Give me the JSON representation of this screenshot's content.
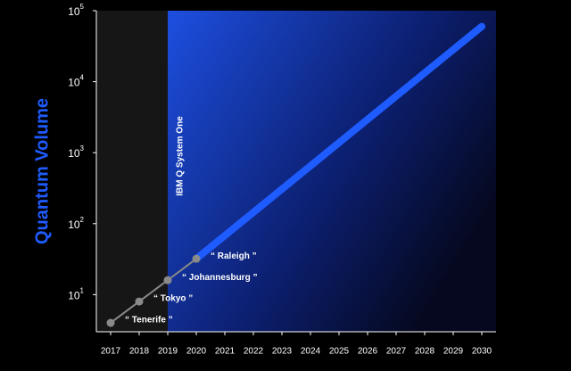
{
  "chart_data": {
    "type": "line",
    "log_y": true,
    "y_label": "Quantum Volume",
    "y_label_color": "#1f5cff",
    "xlim": [
      2016.5,
      2030.5
    ],
    "ylim": [
      3,
      100000
    ],
    "xticks": [
      2017,
      2018,
      2019,
      2020,
      2021,
      2022,
      2023,
      2024,
      2025,
      2026,
      2027,
      2028,
      2029,
      2030
    ],
    "yticks": [
      {
        "value": 10,
        "label": "10",
        "exponent": "1"
      },
      {
        "value": 100,
        "label": "10",
        "exponent": "2"
      },
      {
        "value": 1000,
        "label": "10",
        "exponent": "3"
      },
      {
        "value": 10000,
        "label": "10",
        "exponent": "4"
      },
      {
        "value": 100000,
        "label": "10",
        "exponent": "5"
      }
    ],
    "highlight_start": 2019,
    "highlight_label": "IBM Q System One",
    "x": [
      2017,
      2018,
      2019,
      2020
    ],
    "values": [
      4,
      8,
      16,
      32
    ],
    "color": "#8a8a8a",
    "point_labels": [
      "“ Tenerife ”",
      "“ Tokyo ”",
      "“ Johannesburg ”",
      "“ Raleigh ”"
    ],
    "projection": {
      "x": [
        2020,
        2030
      ],
      "values": [
        32,
        60000
      ],
      "color": "#1f5cff"
    }
  }
}
